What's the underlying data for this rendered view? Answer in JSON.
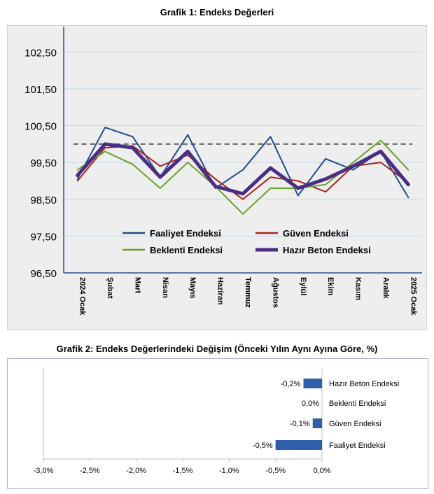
{
  "chart_data": [
    {
      "type": "line",
      "title": "Grafik 1: Endeks Değerleri",
      "categories": [
        "2024 Ocak",
        "Şubat",
        "Mart",
        "Nisan",
        "Mayıs",
        "Haziran",
        "Temmuz",
        "Ağustos",
        "Eylül",
        "Ekim",
        "Kasım",
        "Aralık",
        "2025 Ocak"
      ],
      "y_ticks": [
        "102,50",
        "101,50",
        "100,50",
        "99,50",
        "98,50",
        "97,50",
        "96,50"
      ],
      "ylim": [
        96.5,
        103.0
      ],
      "grid": true,
      "legend_position": "bottom-center inside plot",
      "reference_line": 100,
      "series": [
        {
          "name": "Faaliyet Endeksi",
          "color": "#1F4E8C",
          "values": [
            99.05,
            100.45,
            100.2,
            99.1,
            100.25,
            98.8,
            99.3,
            100.2,
            98.6,
            99.6,
            99.3,
            99.8,
            98.55
          ]
        },
        {
          "name": "Güven Endeksi",
          "color": "#A6231F",
          "values": [
            99.0,
            99.9,
            99.95,
            99.4,
            99.7,
            99.05,
            98.5,
            99.1,
            99.0,
            98.7,
            99.4,
            99.5,
            98.95
          ]
        },
        {
          "name": "Beklenti Endeksi",
          "color": "#6AA12A",
          "values": [
            99.3,
            99.8,
            99.45,
            98.8,
            99.5,
            98.85,
            98.1,
            98.8,
            98.8,
            98.9,
            99.5,
            100.1,
            99.3
          ]
        },
        {
          "name": "Hazır Beton Endeksi",
          "color": "#4B2D83",
          "values": [
            99.15,
            100.0,
            99.9,
            99.1,
            99.8,
            98.85,
            98.65,
            99.35,
            98.8,
            99.05,
            99.4,
            99.8,
            98.9
          ]
        }
      ]
    },
    {
      "type": "bar",
      "orientation": "horizontal",
      "title": "Grafik 2: Endeks Değerlerindeki Değişim (Önceki Yılın Aynı Ayına Göre, %)",
      "categories": [
        "Hazır Beton Endeksi",
        "Beklenti Endeksi",
        "Güven Endeksi",
        "Faaliyet Endeksi"
      ],
      "values": [
        -0.2,
        0.0,
        -0.1,
        -0.5
      ],
      "value_labels": [
        "-0,2%",
        "0,0%",
        "-0,1%",
        "-0,5%"
      ],
      "x_ticks": [
        "-3,0%",
        "-2,5%",
        "-2,0%",
        "-1,5%",
        "-1,0%",
        "-0,5%",
        "0,0%"
      ],
      "xlim": [
        -3.0,
        0.0
      ],
      "bar_color": "#2E5FA8"
    }
  ]
}
